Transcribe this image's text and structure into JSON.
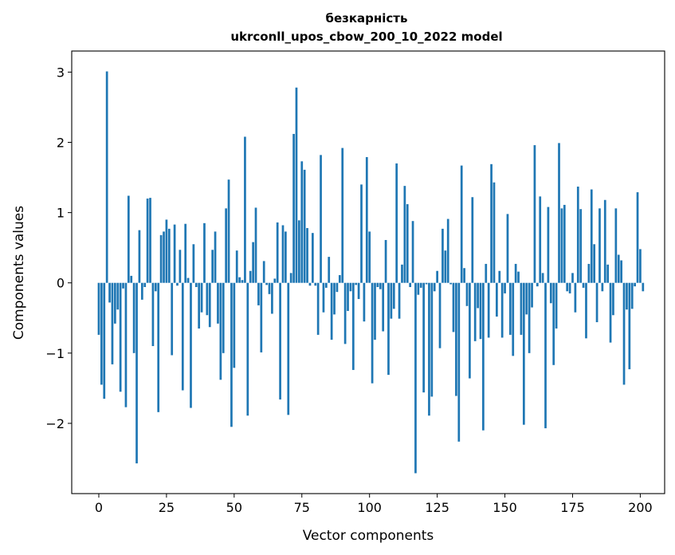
{
  "chart_data": {
    "type": "bar",
    "title_line1": "безкарність",
    "title_line2": "ukrconll_upos_cbow_200_10_2022 model",
    "xlabel": "Vector components",
    "ylabel": "Components values",
    "xlim": [
      -10,
      209
    ],
    "ylim": [
      -3.0,
      3.3
    ],
    "xticks": [
      0,
      25,
      50,
      75,
      100,
      125,
      150,
      175,
      200
    ],
    "yticks": [
      -2,
      -1,
      0,
      1,
      2,
      3
    ],
    "ytick_labels": [
      "−2",
      "−1",
      "0",
      "1",
      "2",
      "3"
    ],
    "grid": false,
    "bar_color": "#1f77b4",
    "values": [
      -0.74,
      -1.45,
      -1.65,
      3.01,
      -0.28,
      -1.16,
      -0.58,
      -0.38,
      -1.55,
      -0.08,
      -1.77,
      1.24,
      0.1,
      -1.0,
      -2.57,
      0.75,
      -0.24,
      -0.06,
      1.2,
      1.21,
      -0.9,
      -0.12,
      -1.84,
      0.68,
      0.73,
      0.9,
      0.77,
      -1.03,
      0.83,
      -0.04,
      0.47,
      -1.53,
      0.84,
      0.07,
      -1.78,
      0.55,
      -0.06,
      -0.65,
      -0.42,
      0.85,
      -0.46,
      -0.63,
      0.47,
      0.73,
      -0.58,
      -1.38,
      -1.0,
      1.06,
      1.47,
      -2.05,
      -1.21,
      0.46,
      0.08,
      0.04,
      2.08,
      -1.89,
      0.17,
      0.58,
      1.07,
      -0.32,
      -0.99,
      0.31,
      -0.03,
      -0.16,
      -0.44,
      0.06,
      0.86,
      -1.66,
      0.82,
      0.73,
      -1.88,
      0.14,
      2.12,
      2.78,
      0.89,
      1.73,
      1.61,
      0.78,
      -0.04,
      0.71,
      -0.04,
      -0.74,
      1.82,
      -0.42,
      -0.07,
      0.37,
      -0.81,
      -0.45,
      -0.13,
      0.11,
      1.92,
      -0.87,
      -0.4,
      -0.12,
      -1.24,
      -0.03,
      -0.23,
      1.4,
      -0.55,
      1.79,
      0.73,
      -1.43,
      -0.81,
      -0.06,
      -0.09,
      -0.69,
      0.61,
      -1.31,
      -0.51,
      -0.37,
      1.7,
      -0.51,
      0.26,
      1.38,
      1.12,
      -0.06,
      0.88,
      -2.71,
      -0.17,
      -0.07,
      -1.56,
      -0.02,
      -1.89,
      -1.62,
      -0.12,
      0.17,
      -0.93,
      0.77,
      0.46,
      0.91,
      -0.02,
      -0.7,
      -1.61,
      -2.26,
      1.67,
      0.21,
      -0.33,
      -1.36,
      1.22,
      -0.83,
      -0.36,
      -0.8,
      -2.1,
      0.27,
      -0.78,
      1.69,
      1.43,
      -0.48,
      0.17,
      -0.78,
      -0.15,
      0.98,
      -0.74,
      -1.04,
      0.27,
      0.16,
      -0.74,
      -2.02,
      -0.45,
      -1.0,
      -0.35,
      1.96,
      -0.05,
      1.23,
      0.14,
      -2.07,
      1.08,
      -0.29,
      -1.17,
      -0.65,
      1.99,
      1.06,
      1.11,
      -0.12,
      -0.15,
      0.14,
      -0.42,
      1.37,
      1.05,
      -0.07,
      -0.79,
      0.27,
      1.33,
      0.55,
      -0.56,
      1.06,
      -0.12,
      1.18,
      0.26,
      -0.85,
      -0.46,
      1.06,
      0.4,
      0.32,
      -1.45,
      -0.38,
      -1.23,
      -0.37,
      -0.05,
      1.29,
      0.48,
      -0.12
    ]
  }
}
